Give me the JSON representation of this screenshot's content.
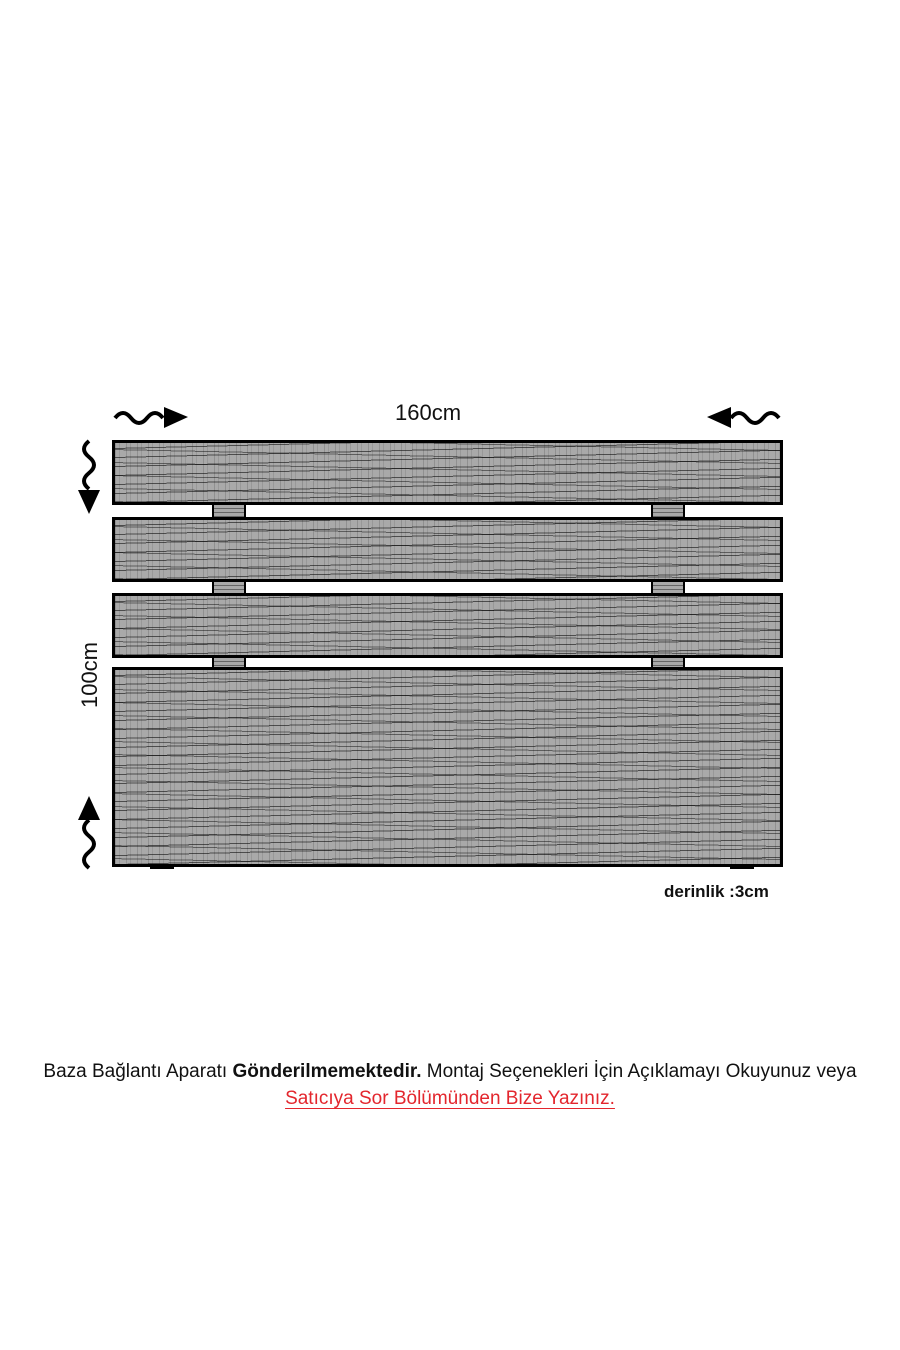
{
  "dimensions": {
    "width": "160cm",
    "height": "100cm",
    "depth": "derinlik :3cm"
  },
  "note": {
    "text_before": "Baza Bağlantı Aparatı ",
    "text_bold": "Gönderilmemektedir.",
    "text_after": " Montaj Seçenekleri İçin Açıklamayı Okuyunuz veya",
    "link_text": "Satıcıya Sor Bölümünden Bize Yazınız."
  },
  "colors": {
    "wood": "#a9a9a9",
    "link": "#e3262d",
    "outline": "#000000"
  },
  "icons": [
    "wavy-arrow-right-icon",
    "wavy-arrow-left-icon",
    "wavy-arrow-down-icon",
    "wavy-arrow-up-icon"
  ]
}
